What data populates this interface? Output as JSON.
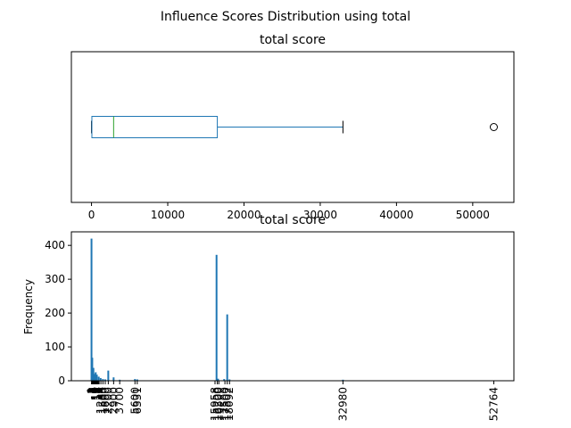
{
  "figure": {
    "suptitle": "Influence Scores Distribution using total"
  },
  "chart_data": [
    {
      "type": "box",
      "title": "total score",
      "orientation": "horizontal",
      "stats": {
        "whisker_low": 0,
        "q1": 50,
        "median": 2900,
        "q3": 16500,
        "whisker_high": 32980
      },
      "outliers": [
        52764
      ],
      "xlim": [
        -2640,
        55400
      ],
      "xticks": [
        0,
        10000,
        20000,
        30000,
        40000,
        50000
      ],
      "xtick_labels": [
        "0",
        "10000",
        "20000",
        "30000",
        "40000",
        "50000"
      ],
      "colors": {
        "box": "#1f77b4",
        "median": "#2ca02c",
        "whisker": "#1f77b4",
        "cap": "#000000",
        "outlier": "#000000"
      }
    },
    {
      "type": "bar",
      "title": "total score",
      "ylabel": "Frequency",
      "xlim": [
        -2640,
        55400
      ],
      "ylim": [
        0,
        440
      ],
      "yticks": [
        0,
        100,
        200,
        300,
        400
      ],
      "ytick_labels": [
        "0",
        "100",
        "200",
        "300",
        "400"
      ],
      "color": "#1f77b4",
      "bars": [
        {
          "x": 0,
          "value": 420
        },
        {
          "x": 100,
          "value": 68
        },
        {
          "x": 250,
          "value": 38
        },
        {
          "x": 400,
          "value": 20
        },
        {
          "x": 550,
          "value": 25
        },
        {
          "x": 700,
          "value": 18
        },
        {
          "x": 950,
          "value": 12
        },
        {
          "x": 1200,
          "value": 8
        },
        {
          "x": 1500,
          "value": 5
        },
        {
          "x": 1800,
          "value": 4
        },
        {
          "x": 2200,
          "value": 30
        },
        {
          "x": 2900,
          "value": 10
        },
        {
          "x": 3700,
          "value": 3
        },
        {
          "x": 5700,
          "value": 5
        },
        {
          "x": 6000,
          "value": 4
        },
        {
          "x": 16400,
          "value": 372
        },
        {
          "x": 16600,
          "value": 6
        },
        {
          "x": 17400,
          "value": 5
        },
        {
          "x": 17800,
          "value": 196
        },
        {
          "x": 18100,
          "value": 4
        },
        {
          "x": 32980,
          "value": 3
        },
        {
          "x": 52764,
          "value": 1
        }
      ],
      "xtick_labels": [
        {
          "x": 0,
          "label": "1"
        },
        {
          "x": 60,
          "label": "2"
        },
        {
          "x": 120,
          "label": "3"
        },
        {
          "x": 180,
          "label": "4"
        },
        {
          "x": 240,
          "label": "5"
        },
        {
          "x": 300,
          "label": "6"
        },
        {
          "x": 360,
          "label": "7"
        },
        {
          "x": 420,
          "label": "8"
        },
        {
          "x": 480,
          "label": "9"
        },
        {
          "x": 540,
          "label": "10"
        },
        {
          "x": 600,
          "label": "11"
        },
        {
          "x": 660,
          "label": "12"
        },
        {
          "x": 720,
          "label": "13"
        },
        {
          "x": 780,
          "label": "14"
        },
        {
          "x": 840,
          "label": "15"
        },
        {
          "x": 900,
          "label": "16"
        },
        {
          "x": 1000,
          "label": "17"
        },
        {
          "x": 1234,
          "label": "1234"
        },
        {
          "x": 1500,
          "label": "1500"
        },
        {
          "x": 1800,
          "label": "1800"
        },
        {
          "x": 2200,
          "label": "2200"
        },
        {
          "x": 2900,
          "label": "2900"
        },
        {
          "x": 3700,
          "label": "3700"
        },
        {
          "x": 5700,
          "label": "5600"
        },
        {
          "x": 6000,
          "label": "6331"
        },
        {
          "x": 16200,
          "label": "15958"
        },
        {
          "x": 16500,
          "label": "16200"
        },
        {
          "x": 16700,
          "label": "16500"
        },
        {
          "x": 17500,
          "label": "17500"
        },
        {
          "x": 17800,
          "label": "17802"
        },
        {
          "x": 18100,
          "label": "18092"
        },
        {
          "x": 32980,
          "label": "32980"
        },
        {
          "x": 52764,
          "label": "52764"
        }
      ]
    }
  ]
}
